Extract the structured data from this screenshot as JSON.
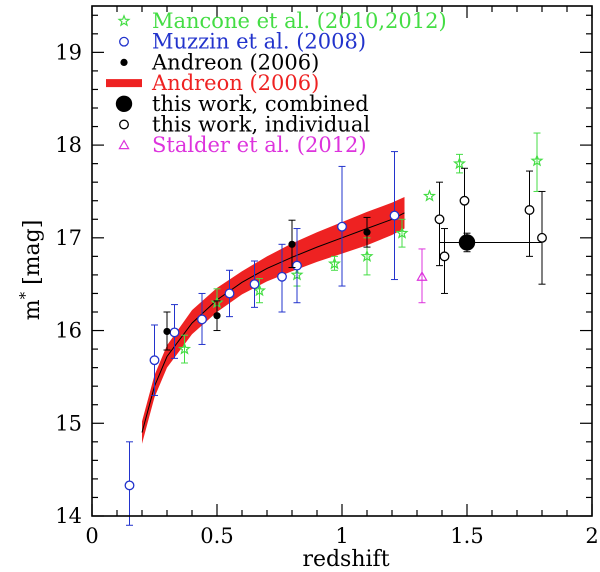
{
  "chart_data": {
    "type": "scatter",
    "xlabel": "redshift",
    "ylabel": "m* [mag]",
    "ylabel_main": "m",
    "ylabel_sup": "*",
    "ylabel_unit": " [mag]",
    "xlim": [
      0,
      2
    ],
    "ylim": [
      14,
      19.5
    ],
    "x_major_ticks": [
      0,
      0.5,
      1,
      1.5,
      2
    ],
    "x_tick_labels": [
      "0",
      "0.5",
      "1",
      "1.5",
      "2"
    ],
    "y_major_ticks": [
      14,
      15,
      16,
      17,
      18,
      19
    ],
    "y_tick_labels": [
      "14",
      "15",
      "16",
      "17",
      "18",
      "19"
    ],
    "x_minor_step": 0.1,
    "y_minor_step": 0.2,
    "legend_position": "top-left",
    "colors": {
      "mancone": "#44dd44",
      "muzzin": "#2233cc",
      "andreon_points": "#000000",
      "andreon_band": "#ee2222",
      "this_work": "#000000",
      "stalder": "#dd33dd"
    },
    "legend": [
      {
        "label": "Mancone et al. (2010,2012)",
        "marker": "star",
        "color": "#44dd44"
      },
      {
        "label": "Muzzin et al. (2008)",
        "marker": "open-circle",
        "color": "#2233cc"
      },
      {
        "label": "Andreon (2006)",
        "marker": "filled-circle",
        "color": "#000000"
      },
      {
        "label": "Andreon (2006)",
        "marker": "band",
        "color": "#ee2222"
      },
      {
        "label": "this work, combined",
        "marker": "big-filled-circle",
        "color": "#000000"
      },
      {
        "label": "this work, individual",
        "marker": "open-circle",
        "color": "#000000"
      },
      {
        "label": "Stalder et al. (2012)",
        "marker": "triangle",
        "color": "#dd33dd"
      }
    ],
    "series": [
      {
        "name": "Mancone et al. (2010,2012)",
        "marker": "star",
        "color": "#44dd44",
        "points": [
          {
            "x": 0.37,
            "y": 15.8,
            "ylo": 15.65,
            "yhi": 15.95
          },
          {
            "x": 0.5,
            "y": 16.3,
            "ylo": 16.15,
            "yhi": 16.45
          },
          {
            "x": 0.67,
            "y": 16.43,
            "ylo": 16.3,
            "yhi": 16.56
          },
          {
            "x": 0.82,
            "y": 16.6,
            "ylo": 16.48,
            "yhi": 16.72
          },
          {
            "x": 0.97,
            "y": 16.72,
            "ylo": 16.65,
            "yhi": 16.8
          },
          {
            "x": 1.1,
            "y": 16.8,
            "ylo": 16.6,
            "yhi": 17.0
          },
          {
            "x": 1.24,
            "y": 17.05,
            "ylo": 16.9,
            "yhi": 17.2
          },
          {
            "x": 1.35,
            "y": 17.45,
            "ylo": 17.45,
            "yhi": 17.45
          },
          {
            "x": 1.47,
            "y": 17.8,
            "ylo": 17.7,
            "yhi": 17.9
          },
          {
            "x": 1.78,
            "y": 17.83,
            "ylo": 17.5,
            "yhi": 18.13
          }
        ]
      },
      {
        "name": "Muzzin et al. (2008)",
        "marker": "open-circle",
        "color": "#2233cc",
        "points": [
          {
            "x": 0.15,
            "y": 14.33,
            "ylo": 13.9,
            "yhi": 14.8
          },
          {
            "x": 0.25,
            "y": 15.68,
            "ylo": 15.3,
            "yhi": 16.06
          },
          {
            "x": 0.33,
            "y": 15.98,
            "ylo": 15.7,
            "yhi": 16.28
          },
          {
            "x": 0.44,
            "y": 16.12,
            "ylo": 15.85,
            "yhi": 16.4
          },
          {
            "x": 0.55,
            "y": 16.4,
            "ylo": 16.15,
            "yhi": 16.65
          },
          {
            "x": 0.65,
            "y": 16.5,
            "ylo": 16.25,
            "yhi": 16.75
          },
          {
            "x": 0.76,
            "y": 16.58,
            "ylo": 16.2,
            "yhi": 16.93
          },
          {
            "x": 0.82,
            "y": 16.7,
            "ylo": 16.3,
            "yhi": 17.1
          },
          {
            "x": 1.0,
            "y": 17.12,
            "ylo": 16.48,
            "yhi": 17.77
          },
          {
            "x": 1.21,
            "y": 17.24,
            "ylo": 16.55,
            "yhi": 17.93
          }
        ]
      },
      {
        "name": "Andreon (2006)",
        "marker": "filled-circle",
        "color": "#000000",
        "points": [
          {
            "x": 0.3,
            "y": 15.99,
            "ylo": 15.79,
            "yhi": 16.2
          },
          {
            "x": 0.5,
            "y": 16.16,
            "ylo": 16.0,
            "yhi": 16.32
          },
          {
            "x": 0.8,
            "y": 16.93,
            "ylo": 16.68,
            "yhi": 17.19
          },
          {
            "x": 1.1,
            "y": 17.06,
            "ylo": 16.9,
            "yhi": 17.22
          }
        ]
      },
      {
        "name": "this work, combined",
        "marker": "big-filled-circle",
        "color": "#000000",
        "points": [
          {
            "x": 1.5,
            "y": 16.95,
            "ylo": 16.85,
            "yhi": 17.05,
            "xlo": 1.39,
            "xhi": 1.8
          }
        ]
      },
      {
        "name": "this work, individual",
        "marker": "open-circle",
        "color": "#000000",
        "points": [
          {
            "x": 1.39,
            "y": 17.2,
            "ylo": 16.7,
            "yhi": 17.6
          },
          {
            "x": 1.41,
            "y": 16.8,
            "ylo": 16.4,
            "yhi": 17.1
          },
          {
            "x": 1.49,
            "y": 17.4,
            "ylo": 16.9,
            "yhi": 17.75
          },
          {
            "x": 1.75,
            "y": 17.3,
            "ylo": 16.8,
            "yhi": 17.72
          },
          {
            "x": 1.8,
            "y": 17.0,
            "ylo": 16.5,
            "yhi": 17.5
          }
        ]
      },
      {
        "name": "Stalder et al. (2012)",
        "marker": "triangle",
        "color": "#dd33dd",
        "points": [
          {
            "x": 1.32,
            "y": 16.58,
            "ylo": 16.3,
            "yhi": 16.88
          }
        ]
      }
    ],
    "band": {
      "name": "Andreon (2006) model",
      "color": "#ee2222",
      "x": [
        0.2,
        0.25,
        0.3,
        0.4,
        0.5,
        0.6,
        0.7,
        0.8,
        0.9,
        1.0,
        1.1,
        1.2,
        1.25
      ],
      "y": [
        14.9,
        15.4,
        15.72,
        16.08,
        16.33,
        16.52,
        16.67,
        16.79,
        16.9,
        17.0,
        17.1,
        17.2,
        17.27
      ],
      "lower": [
        14.78,
        15.28,
        15.6,
        15.96,
        16.2,
        16.39,
        16.53,
        16.64,
        16.74,
        16.83,
        16.92,
        17.03,
        17.1
      ],
      "upper": [
        15.02,
        15.52,
        15.84,
        16.22,
        16.46,
        16.64,
        16.8,
        16.94,
        17.06,
        17.17,
        17.28,
        17.38,
        17.44
      ]
    }
  }
}
